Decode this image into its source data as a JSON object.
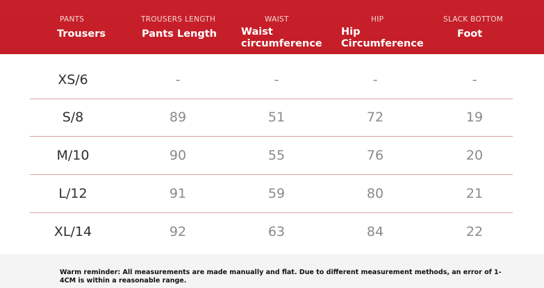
{
  "header": {
    "columns": [
      {
        "small": "PANTS",
        "big": "Trousers"
      },
      {
        "small": "TROUSERS LENGTH",
        "big": "Pants Length"
      },
      {
        "small": "WAIST",
        "big": "Waist circumference"
      },
      {
        "small": "HIP",
        "big": "Hip Circumference"
      },
      {
        "small": "SLACK BOTTOM",
        "big": "Foot"
      }
    ]
  },
  "rows": [
    {
      "size": "XS/6",
      "values": [
        "-",
        "-",
        "-",
        "-"
      ]
    },
    {
      "size": "S/8",
      "values": [
        "89",
        "51",
        "72",
        "19"
      ]
    },
    {
      "size": "M/10",
      "values": [
        "90",
        "55",
        "76",
        "20"
      ]
    },
    {
      "size": "L/12",
      "values": [
        "91",
        "59",
        "80",
        "21"
      ]
    },
    {
      "size": "XL/14",
      "values": [
        "92",
        "63",
        "84",
        "22"
      ]
    }
  ],
  "footer": {
    "note": "Warm reminder: All measurements are made manually and flat. Due to different measurement methods, an error of 1-4CM is within a reasonable range."
  },
  "colors": {
    "header_bg": "#c8202a",
    "divider": "#d9a4a4",
    "footer_bg": "#f4f4f4"
  }
}
